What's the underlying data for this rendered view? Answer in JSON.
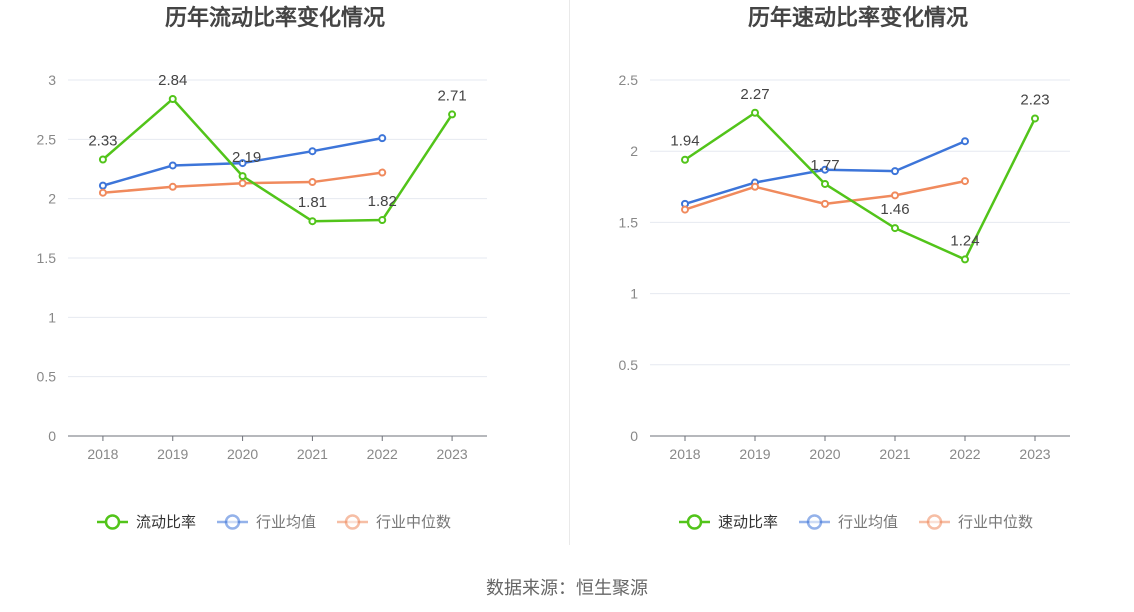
{
  "source_text": "数据来源：恒生聚源",
  "chart_data": [
    {
      "type": "line",
      "title": "历年流动比率变化情况",
      "categories": [
        "2018",
        "2019",
        "2020",
        "2021",
        "2022",
        "2023"
      ],
      "ylim": [
        0,
        3
      ],
      "yticks": [
        "0",
        "0.5",
        "1",
        "1.5",
        "2",
        "2.5",
        "3"
      ],
      "grid": true,
      "legend_position": "bottom",
      "series": [
        {
          "name": "流动比率",
          "color": "#52c41a",
          "values": [
            2.33,
            2.84,
            2.19,
            1.81,
            1.82,
            2.71
          ],
          "labels": [
            "2.33",
            "2.84",
            "2.19",
            "1.81",
            "1.82",
            "2.71"
          ]
        },
        {
          "name": "行业均值",
          "color": "#3d75d9",
          "values": [
            2.11,
            2.28,
            2.3,
            2.4,
            2.51,
            null
          ]
        },
        {
          "name": "行业中位数",
          "color": "#f08a5d",
          "values": [
            2.05,
            2.1,
            2.13,
            2.14,
            2.22,
            null
          ]
        }
      ]
    },
    {
      "type": "line",
      "title": "历年速动比率变化情况",
      "categories": [
        "2018",
        "2019",
        "2020",
        "2021",
        "2022",
        "2023"
      ],
      "ylim": [
        0,
        2.5
      ],
      "yticks": [
        "0",
        "0.5",
        "1",
        "1.5",
        "2",
        "2.5"
      ],
      "grid": true,
      "legend_position": "bottom",
      "series": [
        {
          "name": "速动比率",
          "color": "#52c41a",
          "values": [
            1.94,
            2.27,
            1.77,
            1.46,
            1.24,
            2.23
          ],
          "labels": [
            "1.94",
            "2.27",
            "1.77",
            "1.46",
            "1.24",
            "2.23"
          ]
        },
        {
          "name": "行业均值",
          "color": "#3d75d9",
          "values": [
            1.63,
            1.78,
            1.87,
            1.86,
            2.07,
            null
          ]
        },
        {
          "name": "行业中位数",
          "color": "#f08a5d",
          "values": [
            1.59,
            1.75,
            1.63,
            1.69,
            1.79,
            null
          ]
        }
      ]
    }
  ]
}
